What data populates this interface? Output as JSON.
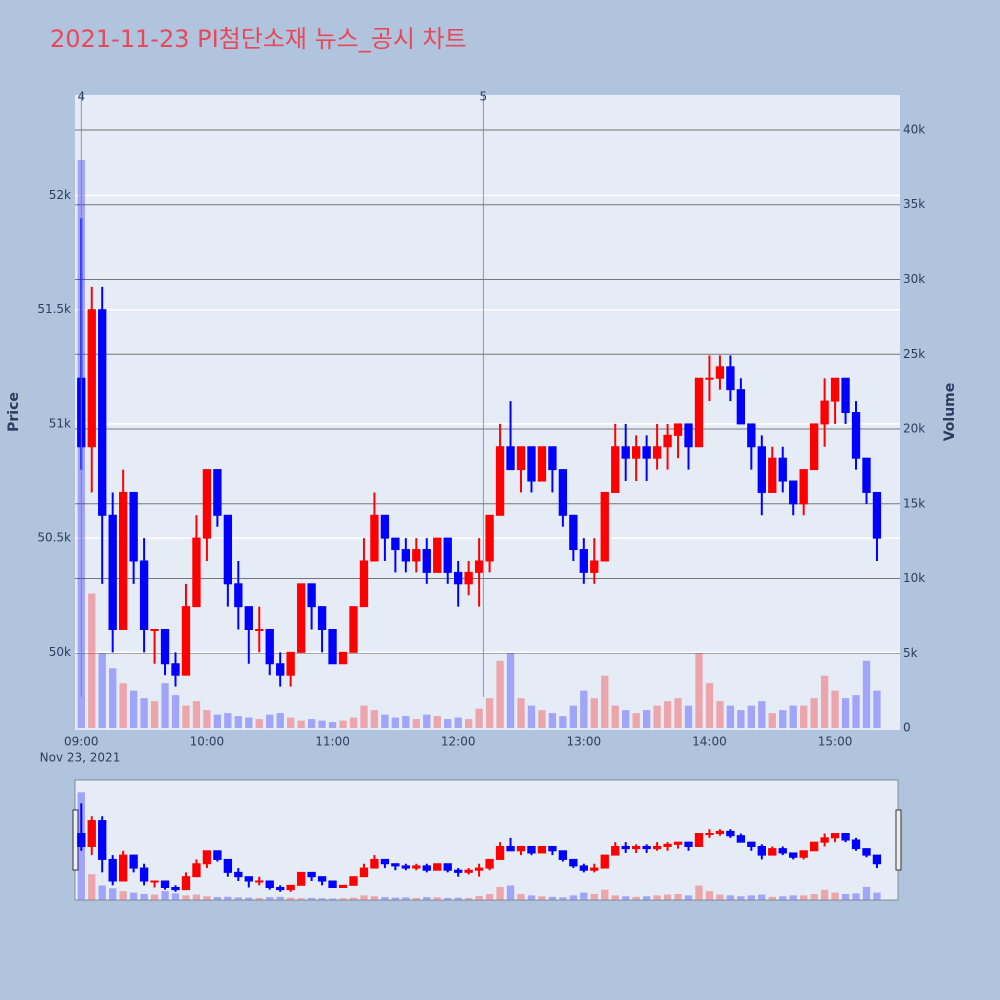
{
  "chart_data": {
    "type": "candlestick",
    "title": "2021-11-23 PI첨단소재 뉴스_공시 차트",
    "y_title": "Price",
    "y2_title": "Volume",
    "x_date_label": "Nov 23, 2021",
    "increasing_color": "#ff0000",
    "decreasing_color": "#0000ff",
    "xlim": [
      "2021-11-23T08:57",
      "2021-11-23T15:31"
    ],
    "xticks": [
      {
        "value": "2021-11-23T09:00",
        "label": "09:00"
      },
      {
        "value": "2021-11-23T10:00",
        "label": "10:00"
      },
      {
        "value": "2021-11-23T11:00",
        "label": "11:00"
      },
      {
        "value": "2021-11-23T12:00",
        "label": "12:00"
      },
      {
        "value": "2021-11-23T13:00",
        "label": "13:00"
      },
      {
        "value": "2021-11-23T14:00",
        "label": "14:00"
      },
      {
        "value": "2021-11-23T15:00",
        "label": "15:00"
      }
    ],
    "ylim": [
      49660,
      52440
    ],
    "yticks": [
      {
        "value": 50000,
        "label": "50k"
      },
      {
        "value": 50500,
        "label": "50.5k"
      },
      {
        "value": 51000,
        "label": "51k"
      },
      {
        "value": 51500,
        "label": "51.5k"
      },
      {
        "value": 52000,
        "label": "52k"
      }
    ],
    "y2lim": [
      -130,
      42340
    ],
    "y2ticks": [
      0,
      {
        "value": 5000,
        "label": "5k"
      },
      {
        "value": 10000,
        "label": "10k"
      },
      {
        "value": 15000,
        "label": "15k"
      },
      {
        "value": 20000,
        "label": "20k"
      },
      {
        "value": 25000,
        "label": "25k"
      },
      {
        "value": 30000,
        "label": "30k"
      },
      {
        "value": 35000,
        "label": "35k"
      },
      {
        "value": 40000,
        "label": "40k"
      }
    ],
    "annotations": [
      {
        "x": "2021-11-23T09:00",
        "text": "4"
      },
      {
        "x": "2021-11-23T12:12",
        "text": "5"
      }
    ],
    "x": [
      "2021-11-23T09:00",
      "2021-11-23T09:05",
      "2021-11-23T09:10",
      "2021-11-23T09:15",
      "2021-11-23T09:20",
      "2021-11-23T09:25",
      "2021-11-23T09:30",
      "2021-11-23T09:35",
      "2021-11-23T09:40",
      "2021-11-23T09:45",
      "2021-11-23T09:50",
      "2021-11-23T09:55",
      "2021-11-23T10:00",
      "2021-11-23T10:05",
      "2021-11-23T10:10",
      "2021-11-23T10:15",
      "2021-11-23T10:20",
      "2021-11-23T10:25",
      "2021-11-23T10:30",
      "2021-11-23T10:35",
      "2021-11-23T10:40",
      "2021-11-23T10:45",
      "2021-11-23T10:50",
      "2021-11-23T10:55",
      "2021-11-23T11:00",
      "2021-11-23T11:05",
      "2021-11-23T11:10",
      "2021-11-23T11:15",
      "2021-11-23T11:20",
      "2021-11-23T11:25",
      "2021-11-23T11:30",
      "2021-11-23T11:35",
      "2021-11-23T11:40",
      "2021-11-23T11:45",
      "2021-11-23T11:50",
      "2021-11-23T11:55",
      "2021-11-23T12:00",
      "2021-11-23T12:05",
      "2021-11-23T12:10",
      "2021-11-23T12:15",
      "2021-11-23T12:20",
      "2021-11-23T12:25",
      "2021-11-23T12:30",
      "2021-11-23T12:35",
      "2021-11-23T12:40",
      "2021-11-23T12:45",
      "2021-11-23T12:50",
      "2021-11-23T12:55",
      "2021-11-23T13:00",
      "2021-11-23T13:05",
      "2021-11-23T13:10",
      "2021-11-23T13:15",
      "2021-11-23T13:20",
      "2021-11-23T13:25",
      "2021-11-23T13:30",
      "2021-11-23T13:35",
      "2021-11-23T13:40",
      "2021-11-23T13:45",
      "2021-11-23T13:50",
      "2021-11-23T13:55",
      "2021-11-23T14:00",
      "2021-11-23T14:05",
      "2021-11-23T14:10",
      "2021-11-23T14:15",
      "2021-11-23T14:20",
      "2021-11-23T14:25",
      "2021-11-23T14:30",
      "2021-11-23T14:35",
      "2021-11-23T14:40",
      "2021-11-23T14:45",
      "2021-11-23T14:50",
      "2021-11-23T14:55",
      "2021-11-23T15:00",
      "2021-11-23T15:05",
      "2021-11-23T15:10",
      "2021-11-23T15:15",
      "2021-11-23T15:20"
    ],
    "open": [
      51200,
      50900,
      51500,
      50600,
      50100,
      50700,
      50400,
      50100,
      50100,
      49950,
      49900,
      50200,
      50500,
      50800,
      50600,
      50300,
      50200,
      50100,
      50100,
      49950,
      49900,
      50000,
      50300,
      50200,
      50100,
      49950,
      50000,
      50200,
      50400,
      50600,
      50500,
      50450,
      50400,
      50450,
      50350,
      50500,
      50350,
      50300,
      50350,
      50400,
      50600,
      50900,
      50800,
      50900,
      50750,
      50900,
      50800,
      50600,
      50450,
      50350,
      50400,
      50700,
      50900,
      50850,
      50900,
      50850,
      50900,
      50950,
      51000,
      50900,
      51200,
      51200,
      51250,
      51150,
      51000,
      50900,
      50700,
      50850,
      50750,
      50650,
      50800,
      51000,
      51100,
      51200,
      51050,
      50850,
      50700
    ],
    "high": [
      51900,
      51600,
      51600,
      50700,
      50800,
      50700,
      50500,
      50100,
      50100,
      50000,
      50300,
      50600,
      50800,
      50800,
      50600,
      50400,
      50200,
      50200,
      50100,
      50000,
      50000,
      50300,
      50300,
      50200,
      50100,
      50000,
      50200,
      50500,
      50700,
      50600,
      50500,
      50500,
      50500,
      50500,
      50500,
      50500,
      50400,
      50400,
      50500,
      50600,
      51000,
      51100,
      50900,
      50900,
      50900,
      50900,
      50800,
      50600,
      50500,
      50500,
      50700,
      51000,
      51000,
      50950,
      50950,
      51000,
      51000,
      51000,
      51000,
      51200,
      51300,
      51300,
      51300,
      51200,
      51000,
      50950,
      50900,
      50900,
      50750,
      50800,
      51000,
      51200,
      51200,
      51200,
      51100,
      50850,
      50700
    ],
    "low": [
      50800,
      50700,
      50300,
      50000,
      50100,
      50300,
      50000,
      49950,
      49900,
      49850,
      49900,
      50200,
      50400,
      50550,
      50200,
      50100,
      49950,
      50000,
      49900,
      49850,
      49850,
      50000,
      50100,
      50000,
      49950,
      49950,
      50000,
      50200,
      50400,
      50400,
      50350,
      50350,
      50350,
      50300,
      50350,
      50300,
      50200,
      50250,
      50200,
      50350,
      50600,
      50800,
      50700,
      50700,
      50750,
      50700,
      50550,
      50400,
      50300,
      50300,
      50400,
      50700,
      50750,
      50750,
      50750,
      50800,
      50800,
      50850,
      50800,
      50900,
      51100,
      51150,
      51100,
      51000,
      50800,
      50600,
      50700,
      50700,
      50600,
      50600,
      50800,
      50900,
      51000,
      51000,
      50800,
      50650,
      50400
    ],
    "close": [
      50900,
      51500,
      50600,
      50100,
      50700,
      50400,
      50100,
      50100,
      49950,
      49900,
      50200,
      50500,
      50800,
      50600,
      50300,
      50200,
      50100,
      50100,
      49950,
      49900,
      50000,
      50300,
      50200,
      50100,
      49950,
      50000,
      50200,
      50400,
      50600,
      50500,
      50450,
      50400,
      50450,
      50350,
      50500,
      50350,
      50300,
      50350,
      50400,
      50600,
      50900,
      50800,
      50900,
      50750,
      50900,
      50800,
      50600,
      50450,
      50350,
      50400,
      50700,
      50900,
      50850,
      50900,
      50850,
      50900,
      50950,
      51000,
      50900,
      51200,
      51200,
      51250,
      51150,
      51000,
      50900,
      50700,
      50850,
      50750,
      50650,
      50800,
      51000,
      51100,
      51200,
      51050,
      50850,
      50700,
      50500
    ],
    "volume": [
      38000,
      9000,
      5000,
      4000,
      3000,
      2500,
      2000,
      1800,
      3000,
      2200,
      1500,
      1800,
      1200,
      900,
      1000,
      800,
      700,
      600,
      900,
      1000,
      700,
      500,
      600,
      500,
      400,
      500,
      700,
      1500,
      1200,
      900,
      700,
      800,
      600,
      900,
      800,
      600,
      700,
      600,
      1300,
      2000,
      4500,
      5000,
      2000,
      1500,
      1200,
      1000,
      800,
      1500,
      2500,
      2000,
      3500,
      1500,
      1200,
      1000,
      1200,
      1500,
      1800,
      2000,
      1500,
      5000,
      3000,
      1800,
      1500,
      1200,
      1500,
      1800,
      1000,
      1200,
      1500,
      1500,
      2000,
      3500,
      2500,
      2000,
      2200,
      4500,
      2500
    ]
  }
}
